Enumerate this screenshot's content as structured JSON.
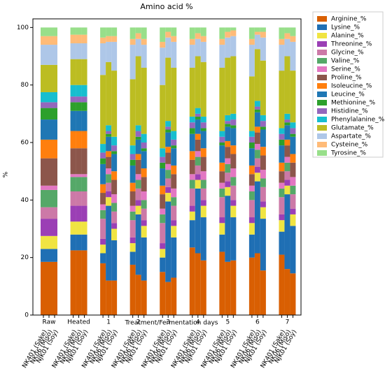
{
  "chart_data": {
    "type": "grouped_stacked_bar",
    "title": "Amino acid %",
    "x_label": "Treatment/Fermentation days",
    "y_label": "%",
    "groups": [
      "Raw",
      "Heated",
      "1",
      "2",
      "3",
      "4",
      "5",
      "6",
      "7"
    ],
    "bar_labels": [
      "NK401 (Sake)",
      "NK06 (Miso)",
      "NJK01 (Soy)"
    ],
    "ylim": [
      0,
      103
    ],
    "yticks": [
      0,
      20,
      40,
      60,
      80,
      100
    ],
    "legend": "outside-upper-right",
    "series": [
      {
        "name": "Arginine_%",
        "color": "#d95f02",
        "values": [
          18.5,
          18.5,
          18.5,
          22.5,
          22.5,
          22.5,
          18,
          12,
          12,
          17.5,
          14,
          12,
          15,
          11.5,
          13,
          23.5,
          21.5,
          19,
          22,
          18.5,
          19,
          20,
          21.5,
          15.5,
          21,
          16,
          14.5
        ]
      },
      {
        "name": "Lysine_%",
        "color": "#1f6fb4",
        "values": [
          4.5,
          4.5,
          4.5,
          5.5,
          5.5,
          5.5,
          3.5,
          26,
          14,
          4.5,
          21,
          15,
          5,
          28,
          14,
          9.5,
          22.5,
          15,
          6,
          23,
          15,
          8,
          25,
          18,
          8,
          26,
          16.5
        ]
      },
      {
        "name": "Alanine_%",
        "color": "#f0e442",
        "values": [
          4.5,
          4.5,
          4.5,
          4.5,
          4.5,
          4.5,
          3,
          3,
          4,
          3,
          3,
          4,
          3,
          3,
          4,
          3,
          3,
          4,
          4,
          3,
          4,
          4,
          3,
          4,
          4,
          3,
          4
        ]
      },
      {
        "name": "Threonine_%",
        "color": "#9b3fb5",
        "values": [
          6,
          6,
          6,
          5.5,
          5.5,
          5.5,
          2,
          2,
          2,
          2,
          2,
          2,
          2,
          2,
          2,
          2,
          2,
          2,
          2,
          2,
          2,
          2,
          2,
          2,
          2,
          2,
          2
        ]
      },
      {
        "name": "Glycine_%",
        "color": "#cc79a7",
        "values": [
          4,
          4,
          4,
          5,
          5,
          5,
          7,
          3,
          4,
          6,
          4,
          4,
          7,
          3,
          5,
          6,
          3,
          4,
          7,
          3,
          5,
          6,
          3,
          5,
          6,
          3,
          5
        ]
      },
      {
        "name": "Valine_%",
        "color": "#55a868",
        "values": [
          6,
          6,
          6,
          5,
          5,
          5,
          3,
          3,
          3,
          3,
          3,
          3,
          3,
          3,
          3,
          3,
          3,
          3,
          3,
          3,
          3,
          3,
          3,
          3,
          3,
          3,
          3
        ]
      },
      {
        "name": "Serine_%",
        "color": "#e377c2",
        "values": [
          1.5,
          1.5,
          1.5,
          1,
          1,
          1,
          2,
          2,
          3,
          2,
          2,
          3,
          2,
          2,
          3,
          2,
          2,
          3,
          2,
          2,
          3,
          2,
          2,
          3,
          2,
          2,
          3
        ]
      },
      {
        "name": "Proline_%",
        "color": "#8c564b",
        "values": [
          9.5,
          9.5,
          9.5,
          9,
          9,
          9,
          4,
          4,
          5,
          5,
          5,
          5,
          5,
          4,
          5,
          5,
          4,
          5,
          4,
          4,
          5,
          4,
          4,
          5,
          4,
          4,
          5
        ]
      },
      {
        "name": "Isoleucine_%",
        "color": "#ff7f0e",
        "values": [
          6.5,
          6.5,
          6.5,
          6,
          6,
          6,
          3,
          2,
          3,
          3,
          2,
          3,
          3,
          2,
          3,
          3,
          2,
          3,
          3,
          2,
          3,
          3,
          2,
          3,
          3,
          2,
          3
        ]
      },
      {
        "name": "Leucine_%",
        "color": "#1f77b4",
        "values": [
          7,
          7,
          7,
          7,
          7,
          7,
          7,
          5,
          6,
          6,
          5,
          6,
          6,
          5,
          6,
          6,
          5,
          6,
          6,
          5,
          6,
          6,
          5,
          6,
          6,
          5,
          6
        ]
      },
      {
        "name": "Methionine_%",
        "color": "#2ca02c",
        "values": [
          4,
          4,
          4,
          3,
          3,
          3,
          2,
          1,
          1,
          2,
          1,
          1,
          2,
          1,
          1,
          2,
          1,
          1,
          1,
          1,
          1,
          2,
          1,
          1,
          2,
          1,
          1
        ]
      },
      {
        "name": "Histidine_%",
        "color": "#9467bd",
        "values": [
          2,
          2,
          2,
          2,
          2,
          2,
          2,
          1,
          2,
          2,
          2,
          2,
          2,
          1,
          2,
          2,
          1,
          2,
          2,
          1,
          2,
          2,
          1,
          2,
          2,
          1,
          2
        ]
      },
      {
        "name": "Phenylalanine_%",
        "color": "#17becf",
        "values": [
          3.5,
          3.5,
          3.5,
          4,
          4,
          4,
          3,
          2,
          3,
          3,
          2,
          3,
          3,
          2,
          3,
          2,
          2,
          2,
          2,
          2,
          2,
          2,
          2,
          2,
          2,
          2,
          2
        ]
      },
      {
        "name": "Glutamate_%",
        "color": "#bcbd22",
        "values": [
          9.5,
          9.5,
          9.5,
          9,
          9,
          9,
          24,
          22,
          23,
          23,
          24,
          23,
          22,
          22,
          22,
          17,
          18,
          19,
          22,
          20,
          20,
          19,
          18,
          19,
          20,
          20,
          18
        ]
      },
      {
        "name": "Aspartate_%",
        "color": "#aec7e8",
        "values": [
          7,
          7,
          7,
          5.5,
          5.5,
          5.5,
          11,
          7,
          10,
          12,
          6,
          8,
          13,
          7,
          9,
          8,
          6,
          7,
          8,
          7,
          7,
          11,
          5,
          8,
          9,
          6,
          10
        ]
      },
      {
        "name": "Cysteine_%",
        "color": "#ffbb78",
        "values": [
          3,
          3,
          3,
          3,
          3,
          3,
          2,
          2,
          2,
          2,
          2,
          2,
          2,
          2,
          2,
          2,
          2,
          2,
          2,
          2,
          2,
          2,
          1,
          2,
          2,
          2,
          2
        ]
      },
      {
        "name": "Tyrosine_%",
        "color": "#98df8a",
        "values": [
          3,
          3,
          3,
          2.5,
          2.5,
          2.5,
          3.5,
          3,
          3,
          4,
          2,
          4,
          5,
          1.5,
          3,
          4,
          2,
          3,
          4,
          1.5,
          1,
          4,
          1.5,
          1.5,
          4,
          2,
          3
        ]
      }
    ]
  }
}
